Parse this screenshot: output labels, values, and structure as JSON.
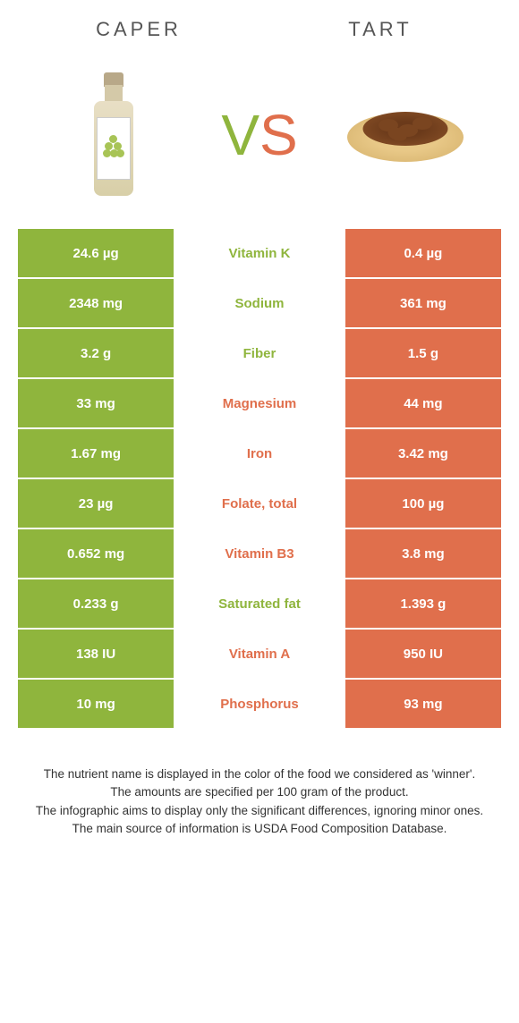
{
  "header": {
    "left_title": "CAPER",
    "right_title": "TART",
    "vs_v": "V",
    "vs_s": "S"
  },
  "colors": {
    "left_bg": "#8fb53d",
    "right_bg": "#e06f4c",
    "left_text": "#8fb53d",
    "right_text": "#e06f4c"
  },
  "rows": [
    {
      "left": "24.6 µg",
      "label": "Vitamin K",
      "right": "0.4 µg",
      "winner": "left"
    },
    {
      "left": "2348 mg",
      "label": "Sodium",
      "right": "361 mg",
      "winner": "left"
    },
    {
      "left": "3.2 g",
      "label": "Fiber",
      "right": "1.5 g",
      "winner": "left"
    },
    {
      "left": "33 mg",
      "label": "Magnesium",
      "right": "44 mg",
      "winner": "right"
    },
    {
      "left": "1.67 mg",
      "label": "Iron",
      "right": "3.42 mg",
      "winner": "right"
    },
    {
      "left": "23 µg",
      "label": "Folate, total",
      "right": "100 µg",
      "winner": "right"
    },
    {
      "left": "0.652 mg",
      "label": "Vitamin B3",
      "right": "3.8 mg",
      "winner": "right"
    },
    {
      "left": "0.233 g",
      "label": "Saturated fat",
      "right": "1.393 g",
      "winner": "left"
    },
    {
      "left": "138 IU",
      "label": "Vitamin A",
      "right": "950 IU",
      "winner": "right"
    },
    {
      "left": "10 mg",
      "label": "Phosphorus",
      "right": "93 mg",
      "winner": "right"
    }
  ],
  "footer": {
    "line1": "The nutrient name is displayed in the color of the food we considered as 'winner'.",
    "line2": "The amounts are specified per 100 gram of the product.",
    "line3": "The infographic aims to display only the significant differences, ignoring minor ones.",
    "line4": "The main source of information is USDA Food Composition Database."
  }
}
